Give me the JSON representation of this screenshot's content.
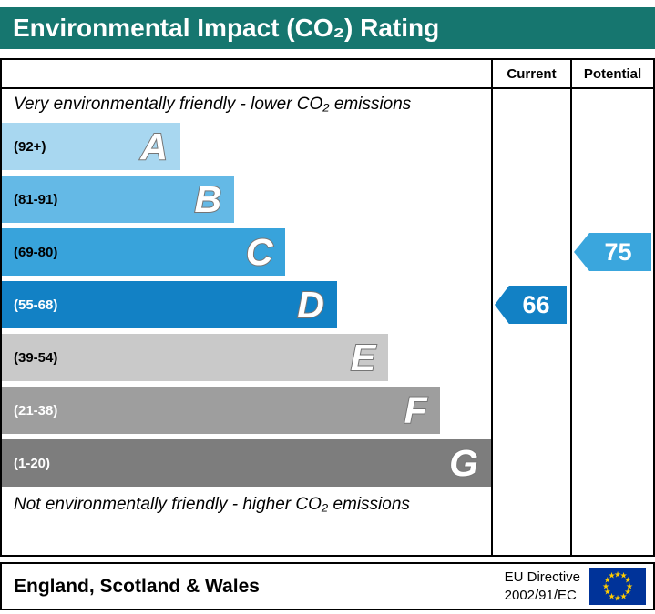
{
  "title": "Environmental Impact (CO₂) Rating",
  "columns": {
    "current": "Current",
    "potential": "Potential"
  },
  "top_caption": "Very environmentally friendly - lower CO₂ emissions",
  "bottom_caption": "Not environmentally friendly - higher CO₂ emissions",
  "footer": {
    "region": "England, Scotland & Wales",
    "directive_line1": "EU Directive",
    "directive_line2": "2002/91/EC"
  },
  "colors": {
    "title_bg": "#16766f",
    "current_marker": "#1281c5",
    "potential_marker": "#3aa6dd",
    "flag_blue": "#003399",
    "star_yellow": "#ffcc00"
  },
  "chart_data": {
    "type": "bar",
    "title": "Environmental Impact (CO₂) Rating",
    "bands": [
      {
        "letter": "A",
        "range": "(92+)",
        "color": "#a8d7f0",
        "width_pct": 36.5,
        "text_color": "#000000"
      },
      {
        "letter": "B",
        "range": "(81-91)",
        "color": "#64b9e6",
        "width_pct": 47.5,
        "text_color": "#000000"
      },
      {
        "letter": "C",
        "range": "(69-80)",
        "color": "#38a3db",
        "width_pct": 58,
        "text_color": "#000000"
      },
      {
        "letter": "D",
        "range": "(55-68)",
        "color": "#1281c5",
        "width_pct": 68.5,
        "text_color": "#ffffff"
      },
      {
        "letter": "E",
        "range": "(39-54)",
        "color": "#c9c9c9",
        "width_pct": 79,
        "text_color": "#000000"
      },
      {
        "letter": "F",
        "range": "(21-38)",
        "color": "#9e9e9e",
        "width_pct": 89.5,
        "text_color": "#ffffff"
      },
      {
        "letter": "G",
        "range": "(1-20)",
        "color": "#7d7d7d",
        "width_pct": 100,
        "text_color": "#ffffff"
      }
    ],
    "current": {
      "value": "66",
      "band": "D"
    },
    "potential": {
      "value": "75",
      "band": "C"
    }
  }
}
